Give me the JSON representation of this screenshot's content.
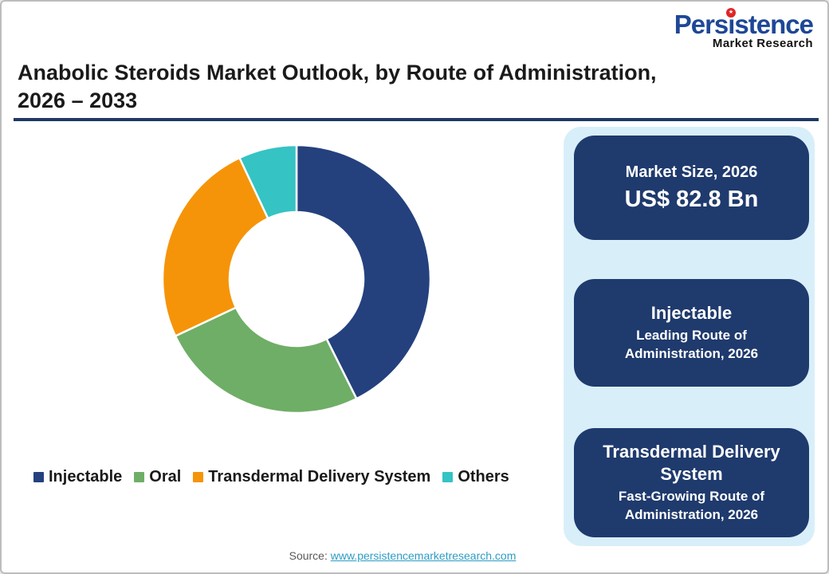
{
  "logo": {
    "brand": "Persistence",
    "sub": "Market Research",
    "dot_glyph": "★",
    "brand_color": "#1e4796",
    "dot_color": "#e02426"
  },
  "header": {
    "title_line1": "Anabolic Steroids Market Outlook, by Route of Administration,",
    "title_line2": "2026 – 2033",
    "rule_color": "#1f3864"
  },
  "chart_data": {
    "type": "pie",
    "donut": true,
    "title": "Anabolic Steroids Market Outlook, by Route of Administration, 2026 – 2033",
    "categories": [
      "Injectable",
      "Oral",
      "Transdermal Delivery System",
      "Others"
    ],
    "values": [
      42.6,
      25.4,
      25.0,
      7.0
    ],
    "unit": "% share (estimated from arc angles)",
    "colors": [
      "#24417e",
      "#6fae67",
      "#f59408",
      "#35c3c4"
    ],
    "start_angle_deg": 0,
    "inner_radius_ratio": 0.5,
    "slice_gap_color": "#ffffff",
    "legend_position": "bottom"
  },
  "panel": {
    "background": "#d8effa",
    "card_background": "#1f3a6d",
    "cards": [
      {
        "title": "Market Size, 2026",
        "value": "US$ 82.8 Bn"
      },
      {
        "title": "Injectable",
        "subtitle": "Leading Route of Administration, 2026"
      },
      {
        "title": "Transdermal Delivery System",
        "subtitle": "Fast-Growing Route of Administration, 2026"
      }
    ]
  },
  "footer": {
    "source_label": "Source:",
    "source_link": "www.persistencemarketresearch.com"
  }
}
